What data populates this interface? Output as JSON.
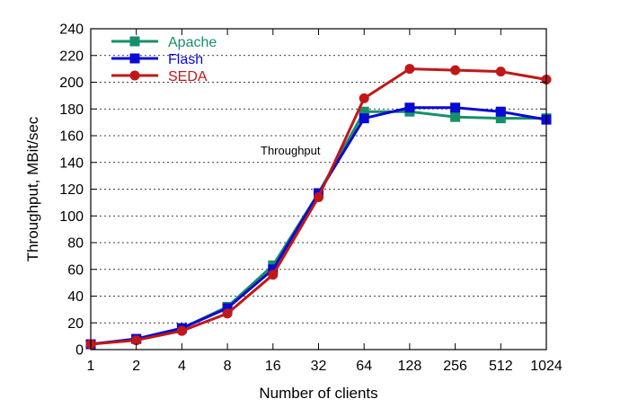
{
  "chart_data": {
    "type": "line",
    "title": "",
    "xlabel": "Number of clients",
    "ylabel": "Throughput, MBit/sec",
    "categories": [
      "1",
      "2",
      "4",
      "8",
      "16",
      "32",
      "64",
      "128",
      "256",
      "512",
      "1024"
    ],
    "ylim": [
      0,
      240
    ],
    "yticks": [
      0,
      20,
      40,
      60,
      80,
      100,
      120,
      140,
      160,
      180,
      200,
      220,
      240
    ],
    "grid": "horizontal dotted",
    "legend_position": "top-left",
    "annotation": "Throughput",
    "series": [
      {
        "name": "Apache",
        "color": "#17906a",
        "marker": "square",
        "values": [
          4,
          8,
          16,
          32,
          63,
          117,
          178,
          178,
          174,
          173,
          173
        ]
      },
      {
        "name": "Flash",
        "color": "#0a0ad2",
        "marker": "square",
        "values": [
          4,
          8,
          16,
          31,
          60,
          117,
          173,
          181,
          181,
          178,
          172
        ]
      },
      {
        "name": "SEDA",
        "color": "#c01818",
        "marker": "circle",
        "values": [
          4,
          7,
          14,
          27,
          56,
          114,
          188,
          210,
          209,
          208,
          202
        ]
      }
    ]
  }
}
